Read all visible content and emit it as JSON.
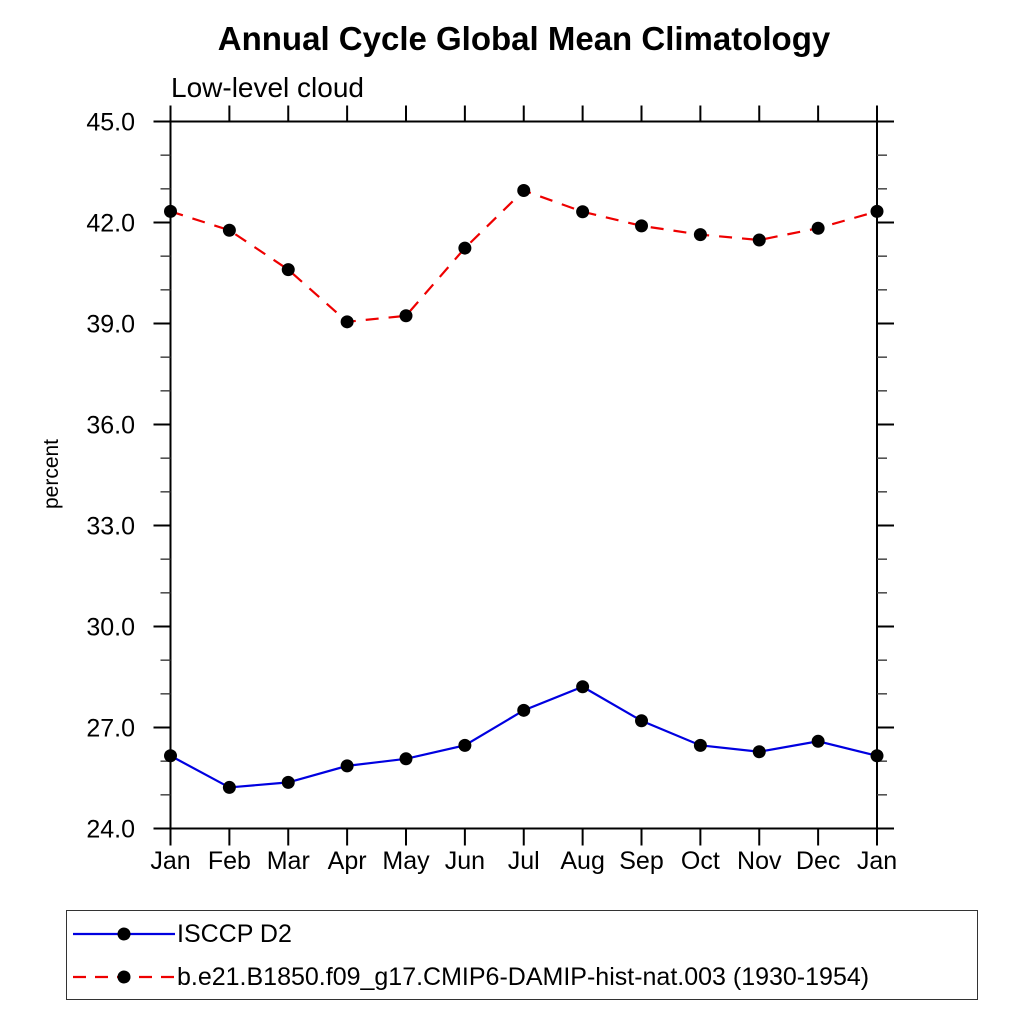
{
  "page": {
    "title": "Annual Cycle Global Mean Climatology",
    "subtitle": "Low-level cloud"
  },
  "chart_data": {
    "type": "line",
    "title": "Annual Cycle Global Mean Climatology",
    "subtitle": "Low-level cloud",
    "xlabel": "",
    "ylabel": "percent",
    "x_tick_labels": [
      "Jan",
      "Feb",
      "Mar",
      "Apr",
      "May",
      "Jun",
      "Jul",
      "Aug",
      "Sep",
      "Oct",
      "Nov",
      "Dec",
      "Jan"
    ],
    "ylim": [
      24.0,
      45.0
    ],
    "y_major_ticks": [
      24.0,
      27.0,
      30.0,
      33.0,
      36.0,
      39.0,
      42.0,
      45.0
    ],
    "y_minor_step": 1.0,
    "grid": false,
    "legend_position": "bottom-left-box",
    "series": [
      {
        "name": "ISCCP D2",
        "color": "#0000e0",
        "line_style": "solid",
        "marker": "filled-circle",
        "marker_color": "#000000",
        "values": [
          26.16,
          25.22,
          25.37,
          25.86,
          26.07,
          26.47,
          27.51,
          28.21,
          27.2,
          26.47,
          26.28,
          26.59,
          26.16
        ]
      },
      {
        "name": "b.e21.B1850.f09_g17.CMIP6-DAMIP-hist-nat.003 (1930-1954)",
        "color": "#ee0000",
        "line_style": "dashed",
        "marker": "filled-circle",
        "marker_color": "#000000",
        "values": [
          42.33,
          41.77,
          40.6,
          39.05,
          39.23,
          41.24,
          42.95,
          42.32,
          41.9,
          41.64,
          41.48,
          41.83,
          42.33
        ]
      }
    ]
  }
}
